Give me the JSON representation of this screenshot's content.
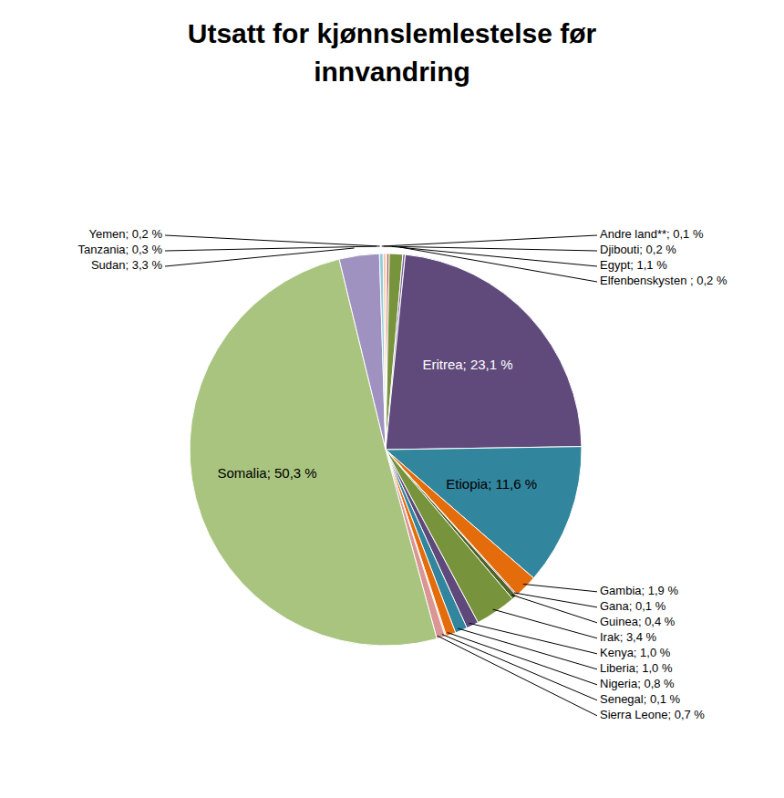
{
  "chart_data": {
    "type": "pie",
    "title": "Utsatt for kjønnslemlestelse før innvandring",
    "categories": [
      "Andre land**",
      "Djibouti",
      "Egypt",
      "Elfenbenskysten",
      "Eritrea",
      "Etiopia",
      "Gambia",
      "Gana",
      "Guinea",
      "Irak",
      "Kenya",
      "Liberia",
      "Nigeria",
      "Senegal",
      "Sierra Leone",
      "Somalia",
      "Sudan",
      "Tanzania",
      "Yemen"
    ],
    "values": [
      0.1,
      0.2,
      1.1,
      0.2,
      23.1,
      11.6,
      1.9,
      0.1,
      0.4,
      3.4,
      1.0,
      1.0,
      0.8,
      0.1,
      0.7,
      50.3,
      3.3,
      0.3,
      0.2
    ],
    "value_labels": [
      "Andre land**; 0,1 %",
      "Djibouti; 0,2 %",
      "Egypt; 1,1 %",
      "Elfenbenskysten ; 0,2 %",
      "Eritrea; 23,1 %",
      "Etiopia; 11,6 %",
      "Gambia; 1,9 %",
      "Gana; 0,1 %",
      "Guinea; 0,4 %",
      "Irak; 3,4 %",
      "Kenya; 1,0 %",
      "Liberia; 1,0 %",
      "Nigeria; 0,8 %",
      "Senegal; 0,1 %",
      "Sierra Leone; 0,7 %",
      "Somalia; 50,3 %",
      "Sudan; 3,3 %",
      "Tanzania; 0,3 %",
      "Yemen; 0,2 %"
    ],
    "colors": [
      "#4f81bd",
      "#c0504d",
      "#77933c",
      "#8064a2",
      "#604a7b",
      "#31859c",
      "#e46c0a",
      "#953735",
      "#4f6228",
      "#77933c",
      "#5f497a",
      "#31859c",
      "#e46c0a",
      "#f79646",
      "#d99694",
      "#a9c47f",
      "#a092c0",
      "#93cddd",
      "#fac090"
    ],
    "data_labels": true
  }
}
